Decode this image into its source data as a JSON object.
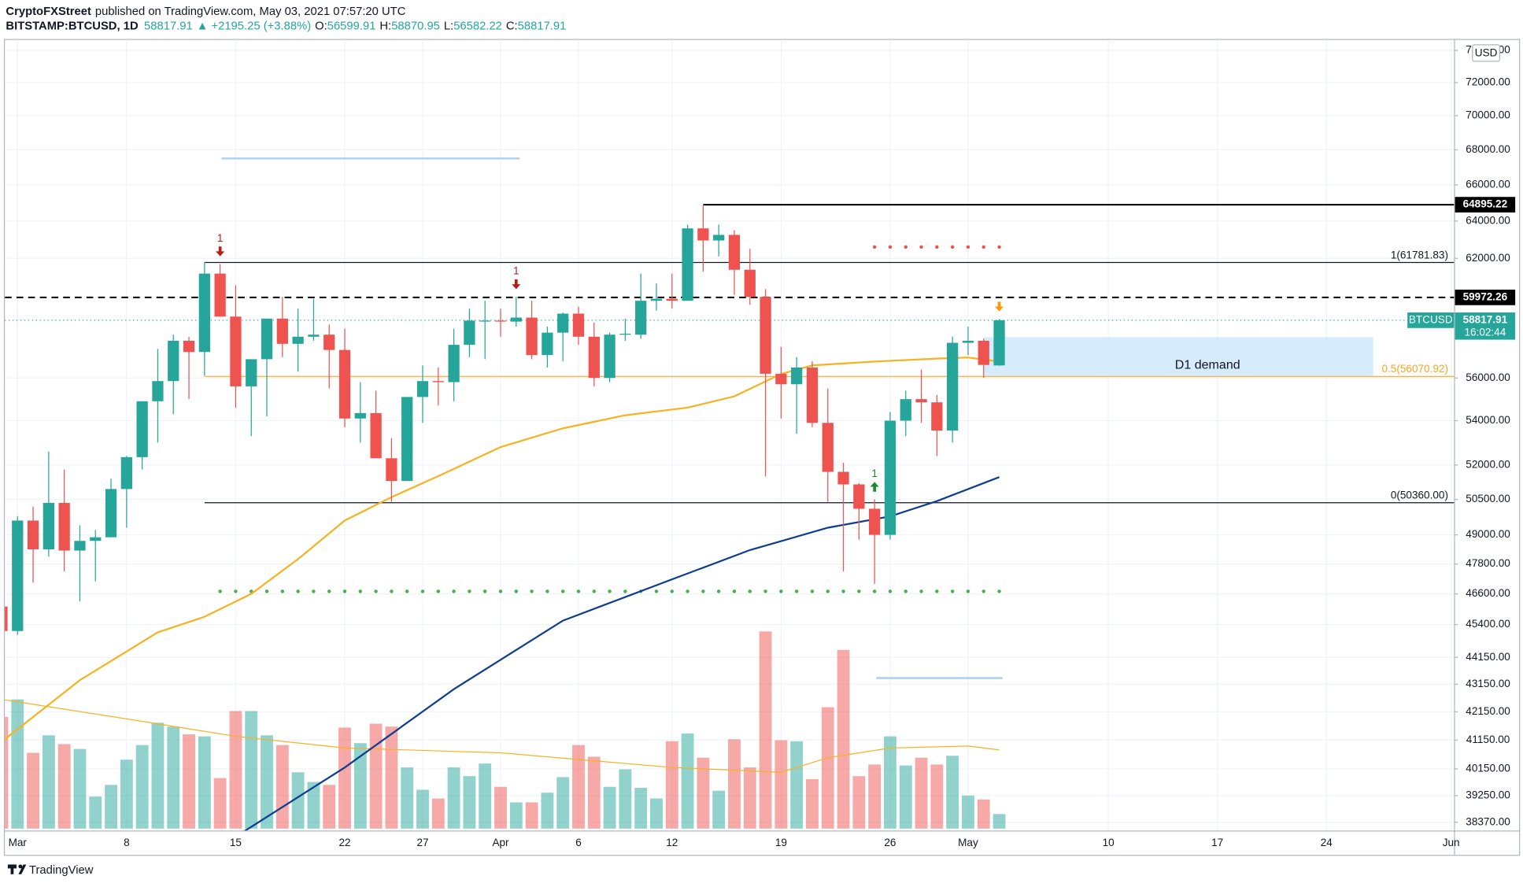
{
  "header": {
    "publisher": "CryptoFXStreet",
    "published": "published on TradingView.com, May 03, 2021 07:57:20 UTC",
    "symbol": "BITSTAMP:BTCUSD, 1D",
    "change": "▲ +2195.25 (+3.88%)",
    "ohlc_keys": [
      "O:",
      "H:",
      "L:",
      "C:"
    ],
    "currency": "USD",
    "footer": "TradingView"
  },
  "chart_data": {
    "type": "candlestick",
    "log_scale": true,
    "grid": true,
    "x": [
      "2021-02-28",
      "2021-03-01",
      "2021-03-02",
      "2021-03-03",
      "2021-03-04",
      "2021-03-05",
      "2021-03-06",
      "2021-03-07",
      "2021-03-08",
      "2021-03-09",
      "2021-03-10",
      "2021-03-11",
      "2021-03-12",
      "2021-03-13",
      "2021-03-14",
      "2021-03-15",
      "2021-03-16",
      "2021-03-17",
      "2021-03-18",
      "2021-03-19",
      "2021-03-20",
      "2021-03-21",
      "2021-03-22",
      "2021-03-23",
      "2021-03-24",
      "2021-03-25",
      "2021-03-26",
      "2021-03-27",
      "2021-03-28",
      "2021-03-29",
      "2021-03-30",
      "2021-03-31",
      "2021-04-01",
      "2021-04-02",
      "2021-04-03",
      "2021-04-04",
      "2021-04-05",
      "2021-04-06",
      "2021-04-07",
      "2021-04-08",
      "2021-04-09",
      "2021-04-10",
      "2021-04-11",
      "2021-04-12",
      "2021-04-13",
      "2021-04-14",
      "2021-04-15",
      "2021-04-16",
      "2021-04-17",
      "2021-04-18",
      "2021-04-19",
      "2021-04-20",
      "2021-04-21",
      "2021-04-22",
      "2021-04-23",
      "2021-04-24",
      "2021-04-25",
      "2021-04-26",
      "2021-04-27",
      "2021-04-28",
      "2021-04-29",
      "2021-04-30",
      "2021-05-01",
      "2021-05-02",
      "2021-05-03"
    ],
    "open": [
      46100,
      45150,
      49600,
      48400,
      50350,
      48350,
      48750,
      48900,
      50950,
      52350,
      54900,
      55850,
      57800,
      57250,
      61200,
      59000,
      55600,
      56900,
      58900,
      57650,
      58000,
      58100,
      57350,
      54100,
      54350,
      52300,
      51300,
      55100,
      55850,
      55800,
      57600,
      58800,
      58800,
      58750,
      58950,
      57100,
      58200,
      59150,
      58000,
      56000,
      58100,
      58100,
      59800,
      59900,
      59800,
      63600,
      62950,
      63250,
      61400,
      60000,
      56200,
      55700,
      56500,
      53900,
      51700,
      51150,
      50100,
      49000,
      54000,
      55000,
      54850,
      53550,
      57700,
      57800,
      56599.91
    ],
    "high": [
      46600,
      49790,
      50200,
      52600,
      51800,
      49400,
      49200,
      51400,
      52400,
      54900,
      57400,
      58100,
      58000,
      61800,
      61700,
      60600,
      56900,
      58900,
      60000,
      59400,
      59900,
      58600,
      58400,
      55800,
      55400,
      53200,
      55100,
      56600,
      56500,
      58400,
      59400,
      59800,
      59400,
      60000,
      59800,
      58500,
      59200,
      59500,
      58700,
      58200,
      58900,
      61200,
      60700,
      61200,
      63800,
      64895.22,
      63800,
      63500,
      62500,
      60400,
      57500,
      57000,
      56800,
      55500,
      52100,
      51200,
      50500,
      54400,
      55400,
      56400,
      55200,
      58000,
      58500,
      57900,
      58870.95
    ],
    "low": [
      44500,
      45000,
      47050,
      48100,
      47500,
      46300,
      47100,
      48900,
      49300,
      51800,
      53000,
      54300,
      55000,
      56100,
      59000,
      54600,
      53300,
      54200,
      57000,
      56300,
      57800,
      55500,
      53700,
      53000,
      52500,
      50400,
      51300,
      53900,
      54700,
      54900,
      57000,
      56900,
      58000,
      58500,
      56900,
      56500,
      56800,
      57600,
      55600,
      55800,
      57800,
      57900,
      59300,
      59400,
      59800,
      61300,
      62100,
      60100,
      59600,
      51500,
      54100,
      53400,
      53700,
      50400,
      47500,
      48800,
      47000,
      48800,
      53300,
      53900,
      52400,
      53000,
      57100,
      56000,
      56582.22
    ],
    "close": [
      45150,
      49600,
      48400,
      50350,
      48350,
      48750,
      48900,
      50950,
      52350,
      54900,
      55850,
      57800,
      57250,
      61200,
      59000,
      55600,
      56900,
      58900,
      57650,
      58000,
      58100,
      57350,
      54100,
      54350,
      52300,
      51300,
      55100,
      55850,
      55800,
      57600,
      58800,
      58800,
      58750,
      58950,
      57100,
      58200,
      59150,
      58000,
      56000,
      58100,
      58150,
      59800,
      59900,
      59800,
      63600,
      62950,
      63250,
      61400,
      60000,
      56200,
      55700,
      56500,
      53900,
      51700,
      51150,
      50100,
      49000,
      54000,
      55000,
      54850,
      53550,
      57700,
      57800,
      56622.66,
      58817.91
    ],
    "up_color": "#26a69a",
    "down_color": "#ef5350",
    "xlim": [
      "2021-02-28",
      "2021-06-01"
    ],
    "xticks": [
      {
        "value": "2021-03-01",
        "label": "Mar"
      },
      {
        "value": "2021-03-08",
        "label": "8"
      },
      {
        "value": "2021-03-15",
        "label": "15"
      },
      {
        "value": "2021-03-22",
        "label": "22"
      },
      {
        "value": "2021-03-27",
        "label": "27"
      },
      {
        "value": "2021-04-01",
        "label": "Apr"
      },
      {
        "value": "2021-04-06",
        "label": "6"
      },
      {
        "value": "2021-04-12",
        "label": "12"
      },
      {
        "value": "2021-04-19",
        "label": "19"
      },
      {
        "value": "2021-04-26",
        "label": "26"
      },
      {
        "value": "2021-05-01",
        "label": "May"
      },
      {
        "value": "2021-05-10",
        "label": "10"
      },
      {
        "value": "2021-05-17",
        "label": "17"
      },
      {
        "value": "2021-05-24",
        "label": "24"
      },
      {
        "value": "2021-06-01",
        "label": "Jun"
      }
    ],
    "ylim": [
      38100,
      74600
    ],
    "yticks": [
      {
        "value": 74000,
        "label": "74000.00"
      },
      {
        "value": 72000,
        "label": "72000.00"
      },
      {
        "value": 70000,
        "label": "70000.00"
      },
      {
        "value": 68000,
        "label": "68000.00"
      },
      {
        "value": 66000,
        "label": "66000.00"
      },
      {
        "value": 64000,
        "label": "64000.00"
      },
      {
        "value": 62000,
        "label": "62000.00"
      },
      {
        "value": 56000,
        "label": "56000.00"
      },
      {
        "value": 54000,
        "label": "54000.00"
      },
      {
        "value": 52000,
        "label": "52000.00"
      },
      {
        "value": 50500,
        "label": "50500.00"
      },
      {
        "value": 49000,
        "label": "49000.00"
      },
      {
        "value": 47800,
        "label": "47800.00"
      },
      {
        "value": 46600,
        "label": "46600.00"
      },
      {
        "value": 45400,
        "label": "45400.00"
      },
      {
        "value": 44150,
        "label": "44150.00"
      },
      {
        "value": 43150,
        "label": "43150.00"
      },
      {
        "value": 42150,
        "label": "42150.00"
      },
      {
        "value": 41150,
        "label": "41150.00"
      },
      {
        "value": 40150,
        "label": "40150.00"
      },
      {
        "value": 39250,
        "label": "39250.00"
      },
      {
        "value": 38370,
        "label": "38370.00"
      }
    ],
    "series": [
      {
        "color": "#f5b324",
        "x": [
          "2021-02-28",
          "2021-03-05",
          "2021-03-10",
          "2021-03-13",
          "2021-03-16",
          "2021-03-19",
          "2021-03-22",
          "2021-03-25",
          "2021-03-28",
          "2021-04-01",
          "2021-04-05",
          "2021-04-09",
          "2021-04-13",
          "2021-04-16",
          "2021-04-19",
          "2021-04-21",
          "2021-04-25",
          "2021-04-29",
          "2021-05-01",
          "2021-05-03"
        ],
        "values": [
          41100,
          43300,
          45100,
          45700,
          46600,
          48000,
          49600,
          50600,
          51510,
          52800,
          53650,
          54250,
          54600,
          55130,
          56190,
          56600,
          56790,
          56930,
          56980,
          56790
        ]
      },
      {
        "color": "#0d3c91",
        "x": [
          "2021-03-15",
          "2021-03-22",
          "2021-03-29",
          "2021-04-05",
          "2021-04-12",
          "2021-04-17",
          "2021-04-22",
          "2021-04-26",
          "2021-04-29",
          "2021-05-03"
        ],
        "values": [
          37900,
          40200,
          42970,
          45550,
          47180,
          48370,
          49300,
          49780,
          50430,
          51470
        ]
      }
    ],
    "volume": {
      "ylim": [
        0,
        250
      ],
      "values": [
        115,
        133,
        78,
        96,
        87,
        82,
        33,
        45,
        71,
        86,
        109,
        105,
        97,
        95,
        52,
        121,
        121,
        96,
        86,
        58,
        48,
        45,
        104,
        88,
        108,
        105,
        63,
        40,
        31,
        63,
        54,
        67,
        43,
        27,
        27,
        37,
        53,
        86,
        74,
        43,
        61,
        42,
        31,
        90,
        98,
        73,
        39,
        92,
        63,
        203,
        91,
        90,
        51,
        125,
        184,
        54,
        66,
        95,
        65,
        73,
        66,
        75,
        34,
        30,
        15
      ],
      "ma": {
        "color": "#f5b324",
        "x": [
          "2021-02-28",
          "2021-03-08",
          "2021-03-15",
          "2021-03-22",
          "2021-04-01",
          "2021-04-12",
          "2021-04-19",
          "2021-04-22",
          "2021-04-26",
          "2021-05-01",
          "2021-05-03"
        ],
        "values": [
          133,
          113,
          95,
          83,
          78,
          63,
          58,
          73,
          83,
          85,
          81
        ]
      }
    },
    "levels": [
      {
        "value": 64895.22,
        "label": "64895.22",
        "from": "2021-04-14",
        "color": "#000000",
        "badge": true
      },
      {
        "value": 61781.83,
        "label": "1(61781.83)",
        "from": "2021-03-13",
        "color": "#131722"
      },
      {
        "value": 59972.26,
        "label": "59972.26",
        "color": "#000000",
        "dashed": true,
        "badge": true
      },
      {
        "value": 56070.92,
        "label": "0.5(56070.92)",
        "from": "2021-03-13",
        "color": "#f5a623"
      },
      {
        "value": 50360,
        "label": "0(50360.00)",
        "from": "2021-03-13",
        "color": "#131722"
      }
    ],
    "zone": {
      "label": "D1 demand",
      "low": 56100,
      "high": 57980,
      "from": "2021-05-02",
      "to": "2021-05-27",
      "color": "#cfe7fb"
    },
    "dot_levels": [
      {
        "value": 62600,
        "from": "2021-04-25",
        "to": "2021-05-03",
        "color": "#ef5350"
      },
      {
        "value": 46700,
        "from": "2021-03-14",
        "to": "2021-05-03",
        "color": "#4caf50"
      }
    ],
    "signals": [
      {
        "x": "2021-03-14",
        "label": "1",
        "color": "#b71c1c",
        "direction": "down"
      },
      {
        "x": "2021-04-02",
        "label": "1",
        "color": "#b71c1c",
        "direction": "down"
      },
      {
        "x": "2021-04-25",
        "label": "1",
        "color": "#1b8a2c",
        "direction": "up"
      },
      {
        "x": "2021-05-03",
        "color": "#ff9800",
        "direction": "down"
      }
    ],
    "last_badge": {
      "symbol": "BTCUSD",
      "countdown": "16:02:44",
      "color": "#26a69a"
    }
  }
}
